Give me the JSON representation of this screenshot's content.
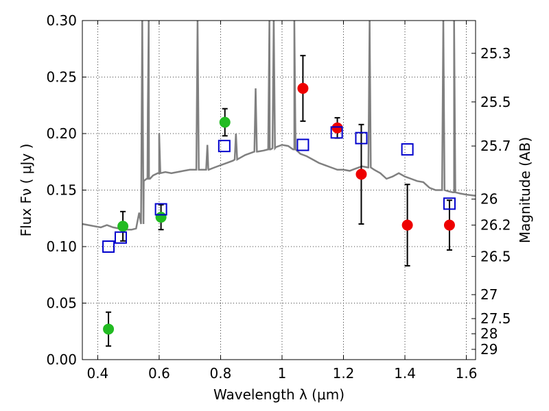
{
  "chart_data": {
    "type": "scatter",
    "xlabel": "Wavelength  λ (μm)",
    "ylabel": "Flux  Fν  ( μJy )",
    "ylabel_right": "Magnitude (AB)",
    "xlim": [
      0.35,
      1.63
    ],
    "ylim": [
      0.0,
      0.3
    ],
    "grid": true,
    "x_ticks": [
      0.4,
      0.6,
      0.8,
      1.0,
      1.2,
      1.4,
      1.6
    ],
    "x_tick_labels": [
      "0.4",
      "0.6",
      "0.8",
      "1",
      "1.2",
      "1.4",
      "1.6"
    ],
    "y_ticks": [
      0.0,
      0.05,
      0.1,
      0.15,
      0.2,
      0.25,
      0.3
    ],
    "y_tick_labels": [
      "0.00",
      "0.05",
      "0.10",
      "0.15",
      "0.20",
      "0.25",
      "0.30"
    ],
    "right_ticks": [
      {
        "flux": 0.271,
        "label": "25.3"
      },
      {
        "flux": 0.228,
        "label": "25.5"
      },
      {
        "flux": 0.189,
        "label": "25.7"
      },
      {
        "flux": 0.142,
        "label": "26"
      },
      {
        "flux": 0.119,
        "label": "26.2"
      },
      {
        "flux": 0.0913,
        "label": "26.5"
      },
      {
        "flux": 0.0575,
        "label": "27"
      },
      {
        "flux": 0.0363,
        "label": "27.5"
      },
      {
        "flux": 0.0229,
        "label": "28"
      },
      {
        "flux": 0.0091,
        "label": "29"
      }
    ],
    "series": [
      {
        "marker": "circle",
        "color": "#22bb22",
        "points": [
          {
            "x": 0.435,
            "y": 0.027,
            "err": 0.015
          },
          {
            "x": 0.482,
            "y": 0.118,
            "err": 0.013
          },
          {
            "x": 0.606,
            "y": 0.126,
            "err": 0.011
          },
          {
            "x": 0.814,
            "y": 0.21,
            "err": 0.012
          }
        ]
      },
      {
        "marker": "circle",
        "color": "#ee0000",
        "points": [
          {
            "x": 1.068,
            "y": 0.24,
            "err": 0.029
          },
          {
            "x": 1.18,
            "y": 0.205,
            "err": 0.009
          },
          {
            "x": 1.258,
            "y": 0.164,
            "err": 0.044
          },
          {
            "x": 1.408,
            "y": 0.119,
            "err": 0.036
          },
          {
            "x": 1.545,
            "y": 0.119,
            "err": 0.022
          }
        ]
      },
      {
        "marker": "square-open",
        "color": "#0000cc",
        "points": [
          {
            "x": 0.435,
            "y": 0.1
          },
          {
            "x": 0.475,
            "y": 0.108
          },
          {
            "x": 0.606,
            "y": 0.133
          },
          {
            "x": 0.812,
            "y": 0.189
          },
          {
            "x": 1.068,
            "y": 0.19
          },
          {
            "x": 1.178,
            "y": 0.201
          },
          {
            "x": 1.258,
            "y": 0.196
          },
          {
            "x": 1.408,
            "y": 0.186
          },
          {
            "x": 1.545,
            "y": 0.138
          }
        ]
      }
    ],
    "model_spectrum": {
      "color": "#808080",
      "points": [
        [
          0.35,
          0.12
        ],
        [
          0.37,
          0.119
        ],
        [
          0.39,
          0.118
        ],
        [
          0.41,
          0.117
        ],
        [
          0.43,
          0.119
        ],
        [
          0.45,
          0.117
        ],
        [
          0.47,
          0.116
        ],
        [
          0.49,
          0.115
        ],
        [
          0.51,
          0.115
        ],
        [
          0.525,
          0.116
        ],
        [
          0.535,
          0.13
        ],
        [
          0.55,
          0.158
        ],
        [
          0.56,
          0.16
        ],
        [
          0.58,
          0.163
        ],
        [
          0.6,
          0.165
        ],
        [
          0.62,
          0.166
        ],
        [
          0.64,
          0.165
        ],
        [
          0.66,
          0.166
        ],
        [
          0.68,
          0.167
        ],
        [
          0.7,
          0.168
        ],
        [
          0.72,
          0.168
        ],
        [
          0.74,
          0.168
        ],
        [
          0.76,
          0.169
        ],
        [
          0.78,
          0.17
        ],
        [
          0.8,
          0.172
        ],
        [
          0.82,
          0.174
        ],
        [
          0.84,
          0.176
        ],
        [
          0.86,
          0.178
        ],
        [
          0.88,
          0.181
        ],
        [
          0.9,
          0.183
        ],
        [
          0.92,
          0.184
        ],
        [
          0.94,
          0.185
        ],
        [
          0.96,
          0.186
        ],
        [
          0.98,
          0.188
        ],
        [
          1.0,
          0.19
        ],
        [
          1.02,
          0.189
        ],
        [
          1.04,
          0.186
        ],
        [
          1.06,
          0.182
        ],
        [
          1.08,
          0.18
        ],
        [
          1.1,
          0.177
        ],
        [
          1.12,
          0.174
        ],
        [
          1.14,
          0.172
        ],
        [
          1.16,
          0.17
        ],
        [
          1.18,
          0.168
        ],
        [
          1.2,
          0.168
        ],
        [
          1.22,
          0.167
        ],
        [
          1.24,
          0.169
        ],
        [
          1.26,
          0.171
        ],
        [
          1.28,
          0.17
        ],
        [
          1.3,
          0.168
        ],
        [
          1.32,
          0.165
        ],
        [
          1.34,
          0.16
        ],
        [
          1.36,
          0.162
        ],
        [
          1.38,
          0.165
        ],
        [
          1.4,
          0.162
        ],
        [
          1.42,
          0.16
        ],
        [
          1.44,
          0.158
        ],
        [
          1.46,
          0.157
        ],
        [
          1.48,
          0.152
        ],
        [
          1.5,
          0.15
        ],
        [
          1.52,
          0.15
        ],
        [
          1.54,
          0.149
        ],
        [
          1.56,
          0.148
        ],
        [
          1.58,
          0.147
        ],
        [
          1.6,
          0.146
        ],
        [
          1.63,
          0.145
        ]
      ],
      "emission_lines": [
        {
          "x": 0.545,
          "peak": 0.3,
          "base": 0.12
        },
        {
          "x": 0.563,
          "peak": 0.22,
          "base": 0.16
        },
        {
          "x": 0.566,
          "peak": 0.3,
          "base": 0.16
        },
        {
          "x": 0.6,
          "peak": 0.2,
          "base": 0.165
        },
        {
          "x": 0.725,
          "peak": 0.3,
          "base": 0.168
        },
        {
          "x": 0.757,
          "peak": 0.19,
          "base": 0.168
        },
        {
          "x": 0.85,
          "peak": 0.2,
          "base": 0.177
        },
        {
          "x": 0.914,
          "peak": 0.24,
          "base": 0.184
        },
        {
          "x": 0.959,
          "peak": 0.3,
          "base": 0.186
        },
        {
          "x": 0.973,
          "peak": 0.3,
          "base": 0.187
        },
        {
          "x": 1.04,
          "peak": 0.3,
          "base": 0.186
        },
        {
          "x": 1.285,
          "peak": 0.3,
          "base": 0.17
        },
        {
          "x": 1.525,
          "peak": 0.3,
          "base": 0.15
        },
        {
          "x": 1.56,
          "peak": 0.3,
          "base": 0.148
        }
      ]
    }
  }
}
